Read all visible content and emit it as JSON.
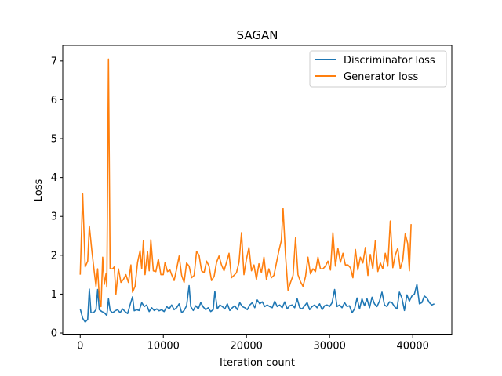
{
  "chart_data": {
    "type": "line",
    "title": "SAGAN",
    "xlabel": "Iteration count",
    "ylabel": "Loss",
    "xlim": [
      -2100,
      44700
    ],
    "ylim": [
      -0.05,
      7.4
    ],
    "xticks": [
      0,
      10000,
      20000,
      30000,
      40000
    ],
    "yticks": [
      0,
      1,
      2,
      3,
      4,
      5,
      6,
      7
    ],
    "grid": false,
    "legend_position": "top-right",
    "series": [
      {
        "name": "Discriminator loss",
        "color": "#1f77b4",
        "points": [
          [
            0,
            0.62
          ],
          [
            300,
            0.38
          ],
          [
            600,
            0.28
          ],
          [
            900,
            0.35
          ],
          [
            1100,
            1.13
          ],
          [
            1300,
            0.52
          ],
          [
            1600,
            0.52
          ],
          [
            1900,
            0.6
          ],
          [
            2100,
            1.12
          ],
          [
            2300,
            0.6
          ],
          [
            2600,
            0.55
          ],
          [
            2900,
            0.52
          ],
          [
            3200,
            0.45
          ],
          [
            3400,
            0.88
          ],
          [
            3600,
            0.58
          ],
          [
            3900,
            0.52
          ],
          [
            4200,
            0.57
          ],
          [
            4500,
            0.6
          ],
          [
            4800,
            0.52
          ],
          [
            5100,
            0.62
          ],
          [
            5400,
            0.55
          ],
          [
            5700,
            0.5
          ],
          [
            6000,
            0.72
          ],
          [
            6300,
            0.93
          ],
          [
            6500,
            0.57
          ],
          [
            6800,
            0.6
          ],
          [
            7100,
            0.58
          ],
          [
            7400,
            0.78
          ],
          [
            7700,
            0.68
          ],
          [
            8000,
            0.72
          ],
          [
            8300,
            0.55
          ],
          [
            8600,
            0.65
          ],
          [
            8900,
            0.58
          ],
          [
            9200,
            0.62
          ],
          [
            9500,
            0.57
          ],
          [
            9800,
            0.6
          ],
          [
            10100,
            0.55
          ],
          [
            10400,
            0.68
          ],
          [
            10700,
            0.62
          ],
          [
            11000,
            0.72
          ],
          [
            11300,
            0.6
          ],
          [
            11600,
            0.65
          ],
          [
            11900,
            0.75
          ],
          [
            12200,
            0.52
          ],
          [
            12500,
            0.58
          ],
          [
            12800,
            0.7
          ],
          [
            13100,
            1.22
          ],
          [
            13300,
            0.68
          ],
          [
            13600,
            0.58
          ],
          [
            13900,
            0.7
          ],
          [
            14200,
            0.62
          ],
          [
            14500,
            0.78
          ],
          [
            14800,
            0.67
          ],
          [
            15100,
            0.6
          ],
          [
            15400,
            0.65
          ],
          [
            15700,
            0.55
          ],
          [
            16000,
            0.6
          ],
          [
            16200,
            1.07
          ],
          [
            16500,
            0.62
          ],
          [
            16800,
            0.72
          ],
          [
            17100,
            0.68
          ],
          [
            17400,
            0.62
          ],
          [
            17700,
            0.75
          ],
          [
            18000,
            0.58
          ],
          [
            18300,
            0.65
          ],
          [
            18600,
            0.7
          ],
          [
            18900,
            0.6
          ],
          [
            19200,
            0.78
          ],
          [
            19500,
            0.68
          ],
          [
            19800,
            0.65
          ],
          [
            20100,
            0.6
          ],
          [
            20400,
            0.72
          ],
          [
            20700,
            0.78
          ],
          [
            21000,
            0.65
          ],
          [
            21300,
            0.85
          ],
          [
            21600,
            0.75
          ],
          [
            21900,
            0.8
          ],
          [
            22200,
            0.68
          ],
          [
            22500,
            0.72
          ],
          [
            22800,
            0.68
          ],
          [
            23100,
            0.65
          ],
          [
            23400,
            0.82
          ],
          [
            23700,
            0.68
          ],
          [
            24000,
            0.72
          ],
          [
            24300,
            0.65
          ],
          [
            24600,
            0.8
          ],
          [
            24900,
            0.62
          ],
          [
            25200,
            0.7
          ],
          [
            25500,
            0.72
          ],
          [
            25800,
            0.65
          ],
          [
            26100,
            0.88
          ],
          [
            26400,
            0.65
          ],
          [
            26700,
            0.62
          ],
          [
            27000,
            0.7
          ],
          [
            27300,
            0.78
          ],
          [
            27600,
            0.6
          ],
          [
            27900,
            0.68
          ],
          [
            28200,
            0.72
          ],
          [
            28500,
            0.65
          ],
          [
            28800,
            0.75
          ],
          [
            29100,
            0.6
          ],
          [
            29400,
            0.7
          ],
          [
            29700,
            0.72
          ],
          [
            30000,
            0.68
          ],
          [
            30300,
            0.78
          ],
          [
            30600,
            1.12
          ],
          [
            30900,
            0.68
          ],
          [
            31200,
            0.72
          ],
          [
            31500,
            0.65
          ],
          [
            31800,
            0.78
          ],
          [
            32100,
            0.68
          ],
          [
            32400,
            0.7
          ],
          [
            32700,
            0.52
          ],
          [
            33000,
            0.62
          ],
          [
            33300,
            0.9
          ],
          [
            33600,
            0.62
          ],
          [
            33900,
            0.88
          ],
          [
            34200,
            0.7
          ],
          [
            34500,
            0.88
          ],
          [
            34800,
            0.65
          ],
          [
            35100,
            0.92
          ],
          [
            35400,
            0.75
          ],
          [
            35700,
            0.68
          ],
          [
            36000,
            0.82
          ],
          [
            36300,
            1.05
          ],
          [
            36600,
            0.72
          ],
          [
            36900,
            0.68
          ],
          [
            37200,
            0.8
          ],
          [
            37500,
            0.78
          ],
          [
            37800,
            0.68
          ],
          [
            38100,
            0.62
          ],
          [
            38400,
            1.05
          ],
          [
            38700,
            0.9
          ],
          [
            39000,
            0.58
          ],
          [
            39300,
            0.98
          ],
          [
            39600,
            0.82
          ],
          [
            39900,
            0.95
          ],
          [
            40200,
            1.0
          ],
          [
            40500,
            1.25
          ],
          [
            40800,
            0.75
          ],
          [
            41100,
            0.78
          ],
          [
            41400,
            0.95
          ],
          [
            41700,
            0.9
          ],
          [
            42000,
            0.78
          ],
          [
            42300,
            0.72
          ],
          [
            42600,
            0.75
          ]
        ]
      },
      {
        "name": "Generator loss",
        "color": "#ff7f0e",
        "points": [
          [
            0,
            1.5
          ],
          [
            300,
            3.58
          ],
          [
            600,
            1.7
          ],
          [
            900,
            1.85
          ],
          [
            1100,
            2.75
          ],
          [
            1400,
            2.12
          ],
          [
            1700,
            1.55
          ],
          [
            1900,
            1.2
          ],
          [
            2100,
            1.65
          ],
          [
            2300,
            0.92
          ],
          [
            2500,
            0.68
          ],
          [
            2700,
            1.95
          ],
          [
            2900,
            1.25
          ],
          [
            3100,
            1.52
          ],
          [
            3200,
            1.18
          ],
          [
            3400,
            7.05
          ],
          [
            3600,
            1.65
          ],
          [
            3900,
            1.65
          ],
          [
            4100,
            1.7
          ],
          [
            4300,
            1.0
          ],
          [
            4600,
            1.65
          ],
          [
            4900,
            1.3
          ],
          [
            5200,
            1.38
          ],
          [
            5500,
            1.5
          ],
          [
            5800,
            1.3
          ],
          [
            6100,
            1.75
          ],
          [
            6300,
            1.05
          ],
          [
            6600,
            1.2
          ],
          [
            6900,
            1.82
          ],
          [
            7200,
            2.12
          ],
          [
            7400,
            1.65
          ],
          [
            7600,
            2.38
          ],
          [
            7800,
            1.5
          ],
          [
            8100,
            2.1
          ],
          [
            8300,
            1.6
          ],
          [
            8500,
            2.4
          ],
          [
            8800,
            1.6
          ],
          [
            9100,
            1.58
          ],
          [
            9400,
            1.9
          ],
          [
            9700,
            1.5
          ],
          [
            10000,
            1.5
          ],
          [
            10200,
            1.82
          ],
          [
            10500,
            1.58
          ],
          [
            10800,
            1.62
          ],
          [
            11000,
            1.5
          ],
          [
            11300,
            1.35
          ],
          [
            11600,
            1.65
          ],
          [
            11900,
            1.98
          ],
          [
            12200,
            1.48
          ],
          [
            12500,
            1.3
          ],
          [
            12800,
            1.8
          ],
          [
            13100,
            1.72
          ],
          [
            13400,
            1.42
          ],
          [
            13700,
            1.48
          ],
          [
            14000,
            2.1
          ],
          [
            14300,
            2.0
          ],
          [
            14600,
            1.6
          ],
          [
            14900,
            1.55
          ],
          [
            15200,
            1.85
          ],
          [
            15500,
            1.72
          ],
          [
            15800,
            1.35
          ],
          [
            16100,
            1.45
          ],
          [
            16400,
            1.82
          ],
          [
            16700,
            1.98
          ],
          [
            17000,
            1.75
          ],
          [
            17300,
            1.6
          ],
          [
            17600,
            1.82
          ],
          [
            17900,
            2.05
          ],
          [
            18200,
            1.42
          ],
          [
            18500,
            1.48
          ],
          [
            18800,
            1.55
          ],
          [
            19100,
            1.82
          ],
          [
            19400,
            2.58
          ],
          [
            19700,
            1.5
          ],
          [
            20000,
            1.9
          ],
          [
            20300,
            2.2
          ],
          [
            20600,
            1.6
          ],
          [
            20900,
            1.75
          ],
          [
            21200,
            1.38
          ],
          [
            21500,
            1.78
          ],
          [
            21800,
            1.55
          ],
          [
            22100,
            1.95
          ],
          [
            22400,
            1.38
          ],
          [
            22700,
            1.65
          ],
          [
            23000,
            1.42
          ],
          [
            23300,
            1.48
          ],
          [
            23600,
            1.8
          ],
          [
            23900,
            2.12
          ],
          [
            24200,
            2.38
          ],
          [
            24400,
            3.2
          ],
          [
            24700,
            2.0
          ],
          [
            25000,
            1.1
          ],
          [
            25300,
            1.3
          ],
          [
            25600,
            1.48
          ],
          [
            25900,
            2.45
          ],
          [
            26200,
            1.5
          ],
          [
            26500,
            1.32
          ],
          [
            26800,
            1.2
          ],
          [
            27100,
            1.45
          ],
          [
            27400,
            1.95
          ],
          [
            27700,
            1.52
          ],
          [
            28000,
            1.65
          ],
          [
            28300,
            1.58
          ],
          [
            28600,
            1.95
          ],
          [
            28900,
            1.65
          ],
          [
            29200,
            1.65
          ],
          [
            29500,
            1.72
          ],
          [
            29800,
            1.85
          ],
          [
            30100,
            1.62
          ],
          [
            30400,
            2.58
          ],
          [
            30700,
            1.72
          ],
          [
            31000,
            2.18
          ],
          [
            31300,
            1.82
          ],
          [
            31600,
            2.05
          ],
          [
            31900,
            1.75
          ],
          [
            32200,
            1.75
          ],
          [
            32500,
            1.68
          ],
          [
            32800,
            1.42
          ],
          [
            33100,
            2.15
          ],
          [
            33400,
            1.62
          ],
          [
            33700,
            1.95
          ],
          [
            34000,
            1.8
          ],
          [
            34300,
            2.2
          ],
          [
            34600,
            1.48
          ],
          [
            34900,
            2.02
          ],
          [
            35200,
            1.65
          ],
          [
            35500,
            2.38
          ],
          [
            35800,
            1.58
          ],
          [
            36100,
            1.8
          ],
          [
            36400,
            1.65
          ],
          [
            36700,
            2.05
          ],
          [
            37000,
            1.72
          ],
          [
            37300,
            2.88
          ],
          [
            37600,
            1.68
          ],
          [
            37900,
            2.0
          ],
          [
            38200,
            2.18
          ],
          [
            38500,
            1.65
          ],
          [
            38800,
            1.88
          ],
          [
            39100,
            2.55
          ],
          [
            39400,
            2.3
          ],
          [
            39600,
            1.6
          ],
          [
            39800,
            2.8
          ]
        ]
      }
    ]
  }
}
